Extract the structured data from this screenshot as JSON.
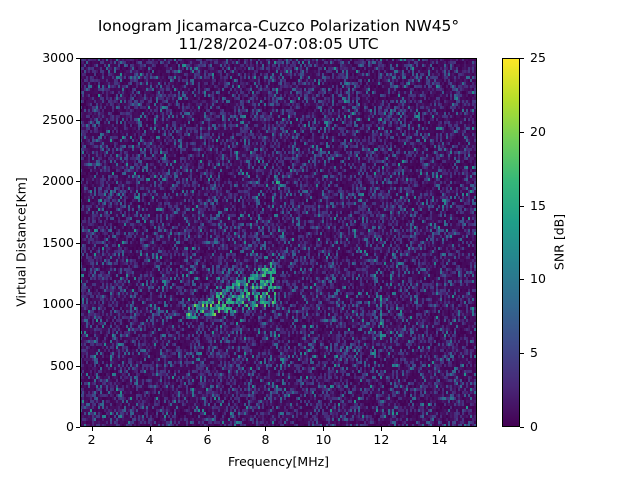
{
  "chart_data": {
    "type": "heatmap",
    "title": "Ionogram Jicamarca-Cuzco Polarization NW45°",
    "subtitle": "11/28/2024-07:08:05 UTC",
    "xlabel": "Frequency[MHz]",
    "ylabel": "Virtual Distance[Km]",
    "xlim": [
      1.6,
      15.3
    ],
    "ylim": [
      0,
      3000
    ],
    "x_ticks": [
      2,
      4,
      6,
      8,
      10,
      12,
      14
    ],
    "y_ticks": [
      0,
      500,
      1000,
      1500,
      2000,
      2500,
      3000
    ],
    "colorbar": {
      "label": "SNR [dB]",
      "range": [
        0,
        25
      ],
      "ticks": [
        0,
        5,
        10,
        15,
        20,
        25
      ],
      "colormap": "viridis"
    },
    "background_snr_db": "mostly 0-5 (noise)",
    "features": [
      {
        "name": "oblique F-layer echo trace",
        "freq_mhz_range": [
          5.3,
          8.3
        ],
        "distance_km_range": [
          880,
          1250
        ],
        "peak_snr_db": 22,
        "shape": "rising streak, lower-left to upper-right"
      },
      {
        "name": "narrow interference line",
        "freq_mhz": 12.0,
        "distance_km_range": [
          730,
          1060
        ],
        "peak_snr_db": 15
      },
      {
        "name": "isolated bright pixels",
        "freq_mhz": 8.4,
        "distance_km": 1980,
        "peak_snr_db": 16
      }
    ],
    "grid": false,
    "legend": "colorbar right"
  },
  "colors": {
    "background": "#ffffff",
    "plot_noise_base": "#440154",
    "viridis": [
      "#440154",
      "#482878",
      "#3e4989",
      "#31688e",
      "#26828e",
      "#1f9e89",
      "#35b779",
      "#6ece58",
      "#b5de2b",
      "#fde725"
    ]
  }
}
